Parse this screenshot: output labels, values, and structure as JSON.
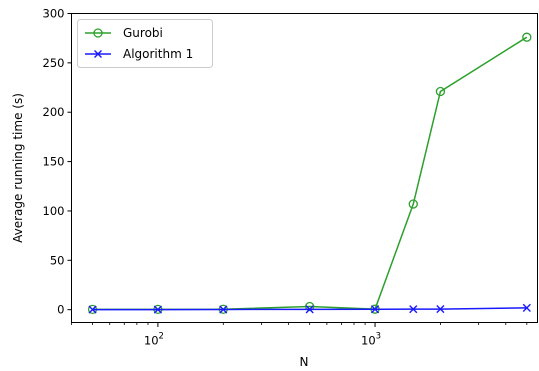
{
  "chart_data": {
    "type": "line",
    "title": "",
    "xlabel": "N",
    "ylabel": "Average running time (s)",
    "x_scale": "log",
    "x": [
      50,
      100,
      200,
      500,
      1000,
      1500,
      2000,
      5000
    ],
    "xlim": [
      40,
      5600
    ],
    "ylim": [
      -13,
      300
    ],
    "x_ticks": [
      {
        "value": 100,
        "base": "10",
        "exp": "2"
      },
      {
        "value": 1000,
        "base": "10",
        "exp": "3"
      }
    ],
    "y_ticks": [
      0,
      50,
      100,
      150,
      200,
      250,
      300
    ],
    "grid": false,
    "legend_position": "top-left",
    "series": [
      {
        "name": "Gurobi",
        "marker": "circle",
        "color": "#2ca02c",
        "values": [
          0.3,
          0.3,
          0.4,
          3.2,
          0.5,
          107,
          221,
          276
        ]
      },
      {
        "name": "Algorithm 1",
        "marker": "x",
        "color": "#1a1aff",
        "values": [
          0.1,
          0.1,
          0.2,
          0.3,
          0.4,
          0.5,
          0.6,
          1.8
        ]
      }
    ]
  }
}
